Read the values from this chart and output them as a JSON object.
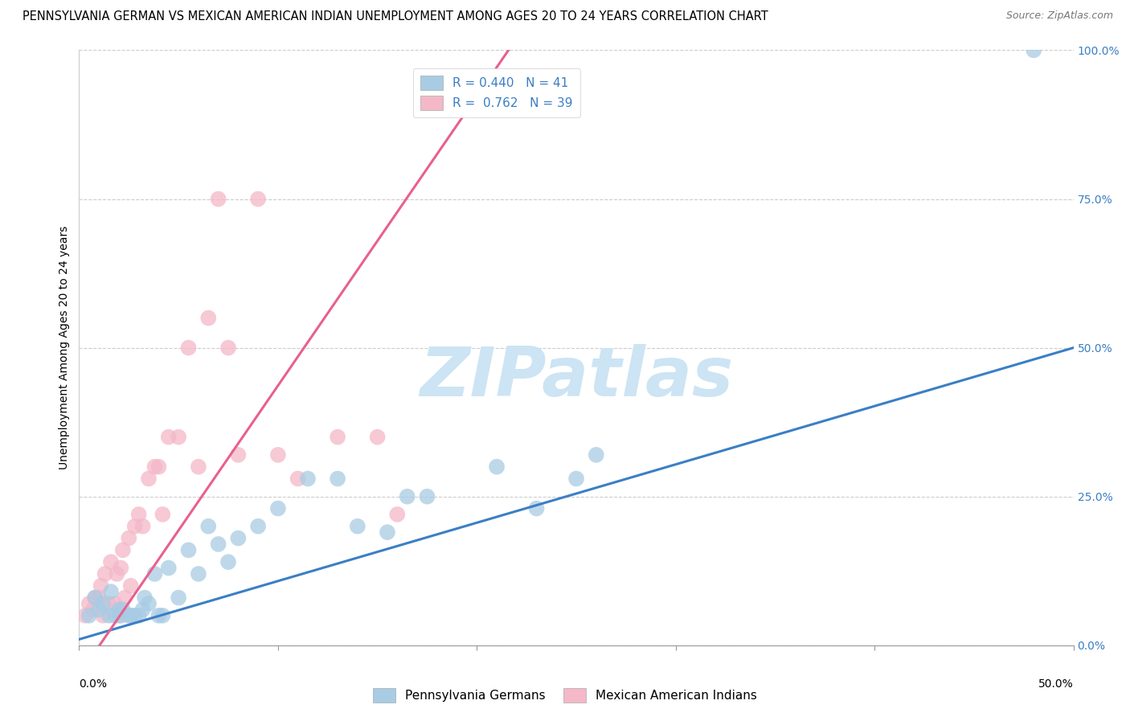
{
  "title": "PENNSYLVANIA GERMAN VS MEXICAN AMERICAN INDIAN UNEMPLOYMENT AMONG AGES 20 TO 24 YEARS CORRELATION CHART",
  "source": "Source: ZipAtlas.com",
  "ylabel": "Unemployment Among Ages 20 to 24 years",
  "xlim": [
    0.0,
    0.5
  ],
  "ylim": [
    0.0,
    1.0
  ],
  "yticks": [
    0.0,
    0.25,
    0.5,
    0.75,
    1.0
  ],
  "ytick_labels": [
    "0.0%",
    "25.0%",
    "50.0%",
    "75.0%",
    "100.0%"
  ],
  "blue_color": "#a8cce4",
  "pink_color": "#f4b8c8",
  "blue_line_color": "#3b7fc4",
  "pink_line_color": "#e86090",
  "blue_R": 0.44,
  "blue_N": 41,
  "pink_R": 0.762,
  "pink_N": 39,
  "watermark": "ZIPatlas",
  "watermark_color": "#cce4f4",
  "blue_x": [
    0.005,
    0.008,
    0.01,
    0.012,
    0.015,
    0.016,
    0.018,
    0.02,
    0.021,
    0.022,
    0.025,
    0.026,
    0.028,
    0.03,
    0.032,
    0.033,
    0.035,
    0.038,
    0.04,
    0.042,
    0.045,
    0.05,
    0.055,
    0.06,
    0.065,
    0.07,
    0.075,
    0.08,
    0.09,
    0.1,
    0.115,
    0.13,
    0.14,
    0.155,
    0.165,
    0.175,
    0.21,
    0.23,
    0.25,
    0.26,
    0.48
  ],
  "blue_y": [
    0.05,
    0.08,
    0.06,
    0.07,
    0.05,
    0.09,
    0.05,
    0.06,
    0.05,
    0.06,
    0.05,
    0.05,
    0.05,
    0.05,
    0.06,
    0.08,
    0.07,
    0.12,
    0.05,
    0.05,
    0.13,
    0.08,
    0.16,
    0.12,
    0.2,
    0.17,
    0.14,
    0.18,
    0.2,
    0.23,
    0.28,
    0.28,
    0.2,
    0.19,
    0.25,
    0.25,
    0.3,
    0.23,
    0.28,
    0.32,
    1.0
  ],
  "pink_x": [
    0.003,
    0.005,
    0.007,
    0.008,
    0.01,
    0.011,
    0.012,
    0.013,
    0.015,
    0.016,
    0.018,
    0.019,
    0.02,
    0.021,
    0.022,
    0.023,
    0.025,
    0.026,
    0.028,
    0.03,
    0.032,
    0.035,
    0.038,
    0.04,
    0.042,
    0.045,
    0.05,
    0.055,
    0.06,
    0.065,
    0.07,
    0.075,
    0.08,
    0.09,
    0.1,
    0.11,
    0.13,
    0.15,
    0.16
  ],
  "pink_y": [
    0.05,
    0.07,
    0.06,
    0.08,
    0.08,
    0.1,
    0.05,
    0.12,
    0.07,
    0.14,
    0.07,
    0.12,
    0.05,
    0.13,
    0.16,
    0.08,
    0.18,
    0.1,
    0.2,
    0.22,
    0.2,
    0.28,
    0.3,
    0.3,
    0.22,
    0.35,
    0.35,
    0.5,
    0.3,
    0.55,
    0.75,
    0.5,
    0.32,
    0.75,
    0.32,
    0.28,
    0.35,
    0.35,
    0.22
  ],
  "title_fontsize": 10.5,
  "source_fontsize": 9,
  "axis_label_fontsize": 10,
  "legend_fontsize": 11,
  "tick_fontsize": 10
}
